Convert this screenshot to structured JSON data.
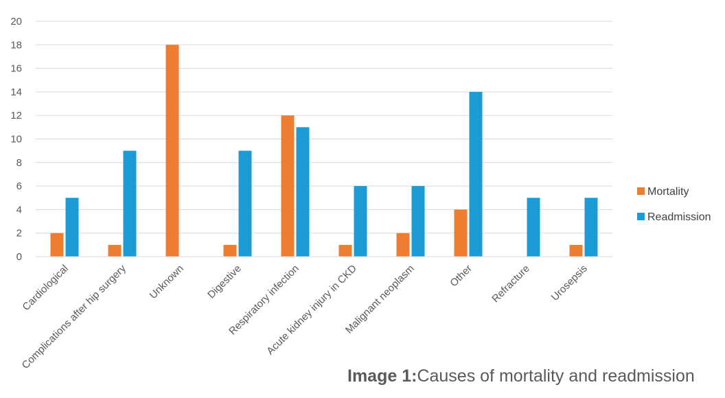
{
  "chart_data": {
    "type": "bar",
    "categories": [
      "Cardiological",
      "Complications after hip surgery",
      "Unknown",
      "Digestive",
      "Respiratory infection",
      "Acute kidney injury in CKD",
      "Malignant neoplasm",
      "Other",
      "Refracture",
      "Urosepsis"
    ],
    "series": [
      {
        "name": "Mortality",
        "color": "#ED7D31",
        "values": [
          2,
          1,
          18,
          1,
          12,
          1,
          2,
          4,
          0,
          1
        ]
      },
      {
        "name": "Readmission",
        "color": "#1B9CD6",
        "values": [
          5,
          9,
          0,
          9,
          11,
          6,
          6,
          14,
          5,
          5
        ]
      }
    ],
    "ylim": [
      0,
      20
    ],
    "yticks": [
      "0",
      "2",
      "4",
      "6",
      "8",
      "10",
      "12",
      "14",
      "16",
      "18",
      "20"
    ],
    "grid": true,
    "legend": "right"
  },
  "caption": {
    "label": "Image 1:",
    "text": "Causes of mortality and readmission"
  }
}
